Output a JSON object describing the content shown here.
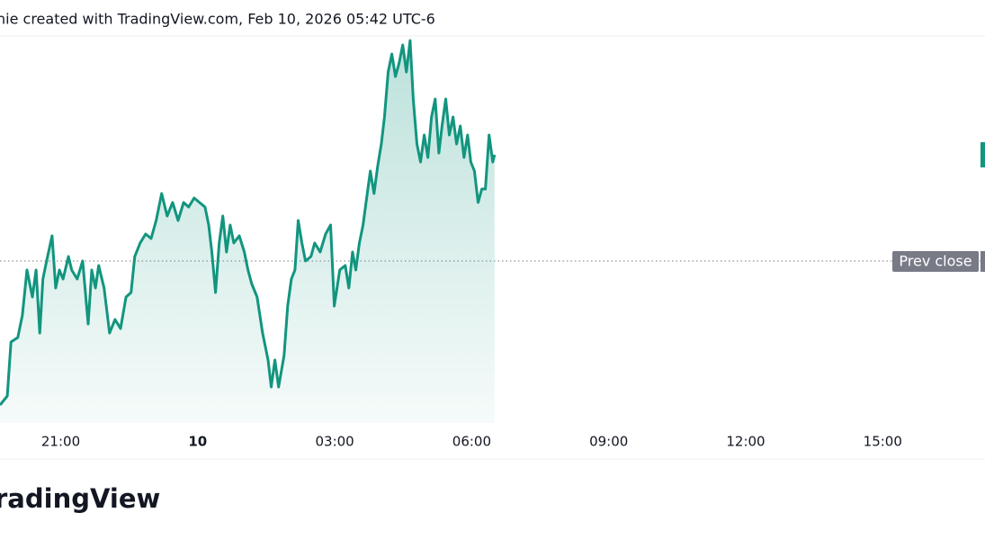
{
  "chart_data": {
    "type": "area",
    "title": "nie created with TradingView.com, Feb 10, 2026 05:42 UTC-6",
    "watermark": "radingView",
    "color": "#12957f",
    "xlim": [
      -4.33,
      17.24
    ],
    "ylim": [
      0,
      430
    ],
    "xticks": [
      {
        "value": -3,
        "label": "21:00"
      },
      {
        "value": 0,
        "label": "10"
      },
      {
        "value": 3,
        "label": "03:00"
      },
      {
        "value": 6,
        "label": "06:00"
      },
      {
        "value": 9,
        "label": "09:00"
      },
      {
        "value": 12,
        "label": "12:00"
      },
      {
        "value": 15,
        "label": "15:00"
      }
    ],
    "prev_close": {
      "value": 180,
      "label": "Prev close"
    },
    "x": [
      -4.33,
      -4.17,
      -4.09,
      -3.94,
      -3.84,
      -3.74,
      -3.62,
      -3.54,
      -3.46,
      -3.39,
      -3.31,
      -3.19,
      -3.11,
      -3.03,
      -2.95,
      -2.83,
      -2.76,
      -2.64,
      -2.52,
      -2.4,
      -2.32,
      -2.24,
      -2.17,
      -2.05,
      -1.93,
      -1.81,
      -1.69,
      -1.57,
      -1.46,
      -1.38,
      -1.26,
      -1.14,
      -1.02,
      -0.91,
      -0.79,
      -0.67,
      -0.55,
      -0.43,
      -0.31,
      -0.2,
      -0.08,
      0.04,
      0.16,
      0.24,
      0.31,
      0.39,
      0.47,
      0.55,
      0.63,
      0.71,
      0.79,
      0.91,
      1.02,
      1.1,
      1.18,
      1.3,
      1.42,
      1.54,
      1.61,
      1.69,
      1.77,
      1.89,
      1.97,
      2.05,
      2.13,
      2.2,
      2.28,
      2.36,
      2.48,
      2.56,
      2.68,
      2.8,
      2.91,
      2.99,
      3.11,
      3.23,
      3.31,
      3.39,
      3.46,
      3.54,
      3.62,
      3.7,
      3.78,
      3.86,
      3.94,
      4.02,
      4.09,
      4.17,
      4.25,
      4.33,
      4.41,
      4.49,
      4.57,
      4.65,
      4.72,
      4.8,
      4.88,
      4.96,
      5.04,
      5.12,
      5.2,
      5.28,
      5.35,
      5.43,
      5.51,
      5.59,
      5.67,
      5.75,
      5.83,
      5.91,
      5.98,
      6.06,
      6.14,
      6.22,
      6.3,
      6.38,
      6.46,
      6.5
    ],
    "values": [
      20,
      30,
      90,
      95,
      120,
      170,
      140,
      170,
      100,
      160,
      180,
      208,
      150,
      170,
      160,
      185,
      170,
      160,
      180,
      110,
      170,
      150,
      175,
      150,
      100,
      115,
      105,
      140,
      145,
      185,
      200,
      210,
      205,
      225,
      255,
      230,
      245,
      225,
      245,
      240,
      250,
      245,
      240,
      220,
      190,
      145,
      200,
      230,
      190,
      220,
      200,
      208,
      190,
      170,
      155,
      140,
      100,
      70,
      40,
      70,
      40,
      75,
      130,
      160,
      170,
      225,
      200,
      180,
      185,
      200,
      190,
      210,
      220,
      130,
      170,
      175,
      150,
      190,
      170,
      200,
      220,
      250,
      280,
      255,
      285,
      310,
      340,
      390,
      410,
      385,
      400,
      420,
      390,
      425,
      360,
      310,
      290,
      320,
      295,
      340,
      360,
      300,
      330,
      360,
      320,
      340,
      310,
      330,
      295,
      320,
      290,
      280,
      245,
      260,
      260,
      320,
      290,
      298
    ]
  }
}
